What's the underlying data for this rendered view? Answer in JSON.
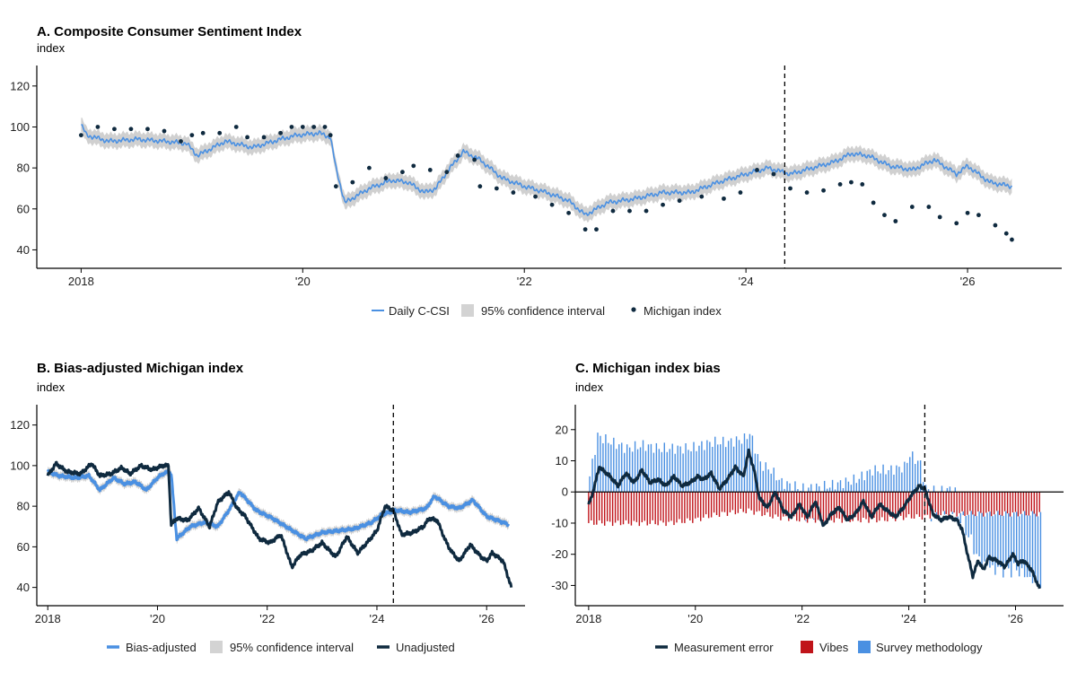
{
  "chart_data": [
    {
      "id": "A",
      "type": "line",
      "title": "A. Composite Consumer Sentiment Index",
      "subtitle": "index",
      "x_ticks": [
        "2018",
        "'20",
        "'22",
        "'24",
        "'26"
      ],
      "y_ticks": [
        "40",
        "60",
        "80",
        "100",
        "120"
      ],
      "xlim": [
        2017.6,
        2026.85
      ],
      "ylim": [
        31,
        130
      ],
      "grid": false,
      "legend_position": "bottom",
      "vline_x": 2024.35,
      "legend": [
        "Daily C-CSI",
        "95% confidence interval",
        "Michigan index"
      ],
      "series": [
        {
          "name": "Daily C-CSI",
          "color": "#4a90e2",
          "band": 3.5,
          "x": [
            2018.0,
            2018.05,
            2018.25,
            2018.5,
            2018.75,
            2018.95,
            2019.05,
            2019.3,
            2019.55,
            2019.8,
            2019.95,
            2020.15,
            2020.25,
            2020.3,
            2020.38,
            2020.6,
            2020.8,
            2020.95,
            2021.1,
            2021.2,
            2021.3,
            2021.45,
            2021.6,
            2021.8,
            2022.0,
            2022.2,
            2022.4,
            2022.55,
            2022.75,
            2023.0,
            2023.25,
            2023.5,
            2023.75,
            2024.0,
            2024.2,
            2024.4,
            2024.6,
            2024.8,
            2024.95,
            2025.1,
            2025.3,
            2025.5,
            2025.7,
            2025.9,
            2026.0,
            2026.2,
            2026.4
          ],
          "y": [
            101,
            96,
            93,
            94,
            93,
            92,
            86,
            93,
            90,
            94,
            96,
            97,
            95,
            80,
            63,
            70,
            74,
            73,
            68,
            70,
            78,
            88,
            84,
            75,
            71,
            68,
            64,
            57,
            63,
            65,
            68,
            68,
            73,
            77,
            80,
            77,
            80,
            83,
            87,
            86,
            81,
            79,
            84,
            77,
            81,
            73,
            71
          ]
        },
        {
          "name": "Michigan index",
          "color": "#0f2a3f",
          "marker": "dot",
          "x": [
            2018.0,
            2018.15,
            2018.3,
            2018.45,
            2018.6,
            2018.75,
            2018.9,
            2019.0,
            2019.1,
            2019.25,
            2019.4,
            2019.5,
            2019.65,
            2019.8,
            2019.9,
            2020.0,
            2020.1,
            2020.2,
            2020.25,
            2020.3,
            2020.45,
            2020.6,
            2020.75,
            2020.9,
            2021.0,
            2021.15,
            2021.3,
            2021.4,
            2021.55,
            2021.6,
            2021.75,
            2021.9,
            2022.1,
            2022.25,
            2022.4,
            2022.55,
            2022.65,
            2022.8,
            2022.95,
            2023.1,
            2023.25,
            2023.4,
            2023.6,
            2023.8,
            2023.95,
            2024.1,
            2024.25,
            2024.4,
            2024.55,
            2024.7,
            2024.85,
            2024.95,
            2025.05,
            2025.15,
            2025.25,
            2025.35,
            2025.5,
            2025.65,
            2025.75,
            2025.9,
            2026.0,
            2026.1,
            2026.25,
            2026.35,
            2026.4
          ],
          "y": [
            96,
            100,
            99,
            99,
            99,
            98,
            93,
            96,
            97,
            97,
            100,
            95,
            95,
            97,
            100,
            100,
            100,
            100,
            96,
            71,
            73,
            80,
            75,
            78,
            81,
            79,
            78,
            86,
            84,
            71,
            70,
            68,
            66,
            62,
            58,
            50,
            50,
            59,
            59,
            59,
            62,
            64,
            66,
            65,
            68,
            79,
            77,
            70,
            68,
            69,
            72,
            73,
            72,
            63,
            57,
            54,
            61,
            61,
            56,
            53,
            58,
            57,
            52,
            48,
            45
          ]
        }
      ]
    },
    {
      "id": "B",
      "type": "line",
      "title": "B. Bias-adjusted Michigan index",
      "subtitle": "index",
      "x_ticks": [
        "2018",
        "'20",
        "'22",
        "'24",
        "'26"
      ],
      "y_ticks": [
        "40",
        "60",
        "80",
        "100",
        "120"
      ],
      "xlim": [
        2017.8,
        2026.7
      ],
      "ylim": [
        31,
        130
      ],
      "grid": false,
      "legend_position": "bottom",
      "vline_x": 2024.3,
      "legend": [
        "Bias-adjusted",
        "95% confidence interval",
        "Unadjusted"
      ],
      "series": [
        {
          "name": "Bias-adjusted",
          "color": "#4a90e2",
          "band": 2,
          "x": [
            2018.0,
            2018.2,
            2018.5,
            2018.75,
            2018.95,
            2019.2,
            2019.4,
            2019.6,
            2019.8,
            2020.0,
            2020.1,
            2020.2,
            2020.25,
            2020.35,
            2020.6,
            2020.85,
            2021.1,
            2021.3,
            2021.5,
            2021.8,
            2022.1,
            2022.4,
            2022.7,
            2023.0,
            2023.3,
            2023.6,
            2023.9,
            2024.1,
            2024.35,
            2024.6,
            2024.9,
            2025.05,
            2025.3,
            2025.5,
            2025.75,
            2026.0,
            2026.2,
            2026.4
          ],
          "y": [
            97,
            95,
            94,
            95,
            88,
            94,
            91,
            92,
            88,
            94,
            96,
            97,
            96,
            64,
            70,
            72,
            70,
            78,
            87,
            78,
            74,
            69,
            64,
            67,
            68,
            69,
            72,
            76,
            78,
            77,
            79,
            85,
            80,
            79,
            83,
            75,
            73,
            71
          ]
        },
        {
          "name": "Unadjusted",
          "color": "#0f2a3f",
          "x": [
            2018.0,
            2018.15,
            2018.35,
            2018.6,
            2018.8,
            2018.95,
            2019.15,
            2019.35,
            2019.5,
            2019.7,
            2019.9,
            2020.1,
            2020.2,
            2020.25,
            2020.35,
            2020.55,
            2020.75,
            2020.95,
            2021.1,
            2021.3,
            2021.45,
            2021.6,
            2021.85,
            2022.05,
            2022.25,
            2022.45,
            2022.6,
            2022.8,
            2023.0,
            2023.25,
            2023.45,
            2023.65,
            2023.85,
            2024.0,
            2024.15,
            2024.3,
            2024.45,
            2024.65,
            2024.85,
            2024.95,
            2025.1,
            2025.25,
            2025.35,
            2025.5,
            2025.7,
            2025.9,
            2026.0,
            2026.1,
            2026.3,
            2026.45
          ],
          "y": [
            95,
            101,
            97,
            96,
            101,
            95,
            96,
            99,
            96,
            100,
            98,
            100,
            100,
            71,
            74,
            73,
            79,
            70,
            82,
            87,
            79,
            75,
            64,
            62,
            66,
            50,
            56,
            58,
            62,
            55,
            65,
            57,
            63,
            68,
            80,
            78,
            66,
            67,
            70,
            74,
            73,
            63,
            58,
            53,
            61,
            55,
            53,
            57,
            53,
            40
          ]
        }
      ]
    },
    {
      "id": "C",
      "type": "bar",
      "title": "C. Michigan index bias",
      "subtitle": "index",
      "x_ticks": [
        "2018",
        "'20",
        "'22",
        "'24",
        "'26"
      ],
      "y_ticks": [
        "-30",
        "-20",
        "-10",
        "0",
        "10",
        "20"
      ],
      "xlim": [
        2017.75,
        2026.9
      ],
      "ylim": [
        -36.5,
        28
      ],
      "grid": false,
      "legend_position": "bottom",
      "vline_x": 2024.3,
      "legend": [
        "Measurement error",
        "Vibes",
        "Survey methodology"
      ],
      "series": [
        {
          "name": "Vibes",
          "color": "#c0141a",
          "x": [
            2018.0,
            2018.5,
            2019.0,
            2019.5,
            2020.0,
            2020.2,
            2020.5,
            2021.0,
            2021.5,
            2022.0,
            2022.5,
            2023.0,
            2023.5,
            2024.0,
            2024.3,
            2024.6,
            2025.0,
            2025.5,
            2026.0,
            2026.45
          ],
          "y": [
            -10,
            -10,
            -10,
            -10,
            -9,
            -8,
            -7,
            -6,
            -8,
            -9,
            -9,
            -9,
            -9,
            -8,
            -8,
            -7,
            -7,
            -7,
            -7,
            -7
          ]
        },
        {
          "name": "Survey methodology",
          "color": "#4a90e2",
          "x": [
            2018.0,
            2018.15,
            2018.4,
            2018.7,
            2019.0,
            2019.3,
            2019.6,
            2019.9,
            2020.1,
            2020.3,
            2020.6,
            2020.9,
            2021.0,
            2021.2,
            2021.4,
            2021.6,
            2021.8,
            2022.0,
            2022.5,
            2023.0,
            2023.3,
            2023.6,
            2023.9,
            2024.0,
            2024.2,
            2024.3,
            2024.5,
            2024.8,
            2025.0,
            2025.3,
            2025.6,
            2026.0,
            2026.45
          ],
          "y": [
            5,
            18,
            16,
            14,
            15,
            14,
            14,
            14,
            15,
            16,
            16,
            17,
            19,
            9,
            7,
            3,
            2,
            1,
            2,
            4,
            7,
            7,
            8,
            12,
            9,
            1,
            0,
            1,
            -3,
            -15,
            -18,
            -18,
            -23
          ]
        },
        {
          "name": "Measurement error",
          "color": "#0f2a3f",
          "x": [
            2018.0,
            2018.05,
            2018.2,
            2018.4,
            2018.55,
            2018.7,
            2018.85,
            2019.0,
            2019.15,
            2019.3,
            2019.45,
            2019.6,
            2019.75,
            2019.9,
            2020.05,
            2020.15,
            2020.3,
            2020.45,
            2020.6,
            2020.75,
            2020.9,
            2021.0,
            2021.1,
            2021.2,
            2021.35,
            2021.5,
            2021.65,
            2021.8,
            2021.95,
            2022.1,
            2022.25,
            2022.4,
            2022.55,
            2022.7,
            2022.85,
            2023.0,
            2023.15,
            2023.3,
            2023.45,
            2023.6,
            2023.75,
            2023.9,
            2024.05,
            2024.2,
            2024.3,
            2024.45,
            2024.6,
            2024.75,
            2024.9,
            2025.0,
            2025.1,
            2025.2,
            2025.3,
            2025.4,
            2025.5,
            2025.65,
            2025.8,
            2025.95,
            2026.05,
            2026.15,
            2026.3,
            2026.45
          ],
          "y": [
            -4,
            -2,
            8,
            5,
            2,
            6,
            3,
            7,
            3,
            4,
            2,
            5,
            2,
            3,
            5,
            4,
            6,
            1,
            4,
            8,
            5,
            13,
            7,
            -2,
            -5,
            0,
            -6,
            -8,
            -4,
            -8,
            -3,
            -11,
            -7,
            -5,
            -9,
            -7,
            -3,
            -8,
            -4,
            -6,
            -8,
            -5,
            -1,
            2,
            1,
            -7,
            -9,
            -8,
            -9,
            -12,
            -20,
            -27,
            -22,
            -25,
            -21,
            -22,
            -24,
            -20,
            -23,
            -22,
            -25,
            -31
          ]
        }
      ]
    }
  ]
}
